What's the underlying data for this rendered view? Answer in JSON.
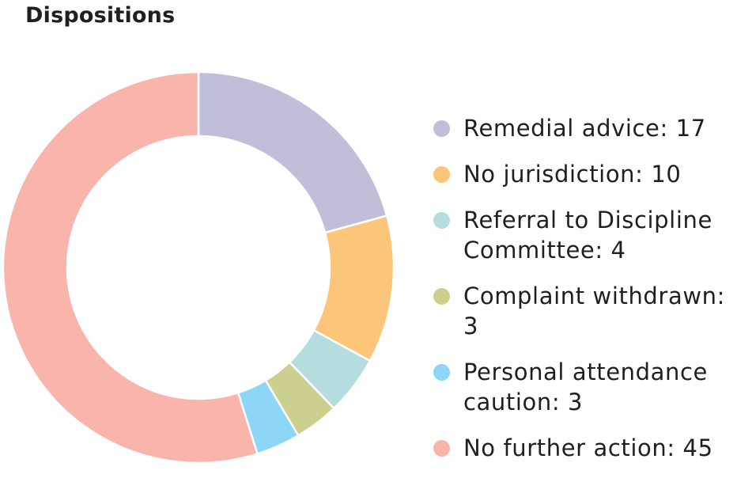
{
  "title": "Dispositions",
  "chart_data": {
    "type": "pie",
    "variant": "donut",
    "title": "Dispositions",
    "legend": "right",
    "slices": [
      {
        "label": "Remedial advice",
        "value": 17,
        "legend_lines": [
          "Remedial advice: 17"
        ],
        "color": "#c0bed9"
      },
      {
        "label": "No jurisdiction",
        "value": 10,
        "legend_lines": [
          "No jurisdiction: 10"
        ],
        "color": "#fbc57a"
      },
      {
        "label": "Referral to Discipline Committee",
        "value": 4,
        "legend_lines": [
          "Referral to Discipline",
          "Committee: 4"
        ],
        "color": "#b5dcdf"
      },
      {
        "label": "Complaint withdrawn",
        "value": 3,
        "legend_lines": [
          "Complaint withdrawn: 3"
        ],
        "color": "#cdcf8e"
      },
      {
        "label": "Personal attendance caution",
        "value": 3,
        "legend_lines": [
          "Personal attendance",
          "caution: 3"
        ],
        "color": "#8dd6f6"
      },
      {
        "label": "No further action",
        "value": 45,
        "legend_lines": [
          "No further action: 45"
        ],
        "color": "#f9b4ac"
      }
    ]
  }
}
